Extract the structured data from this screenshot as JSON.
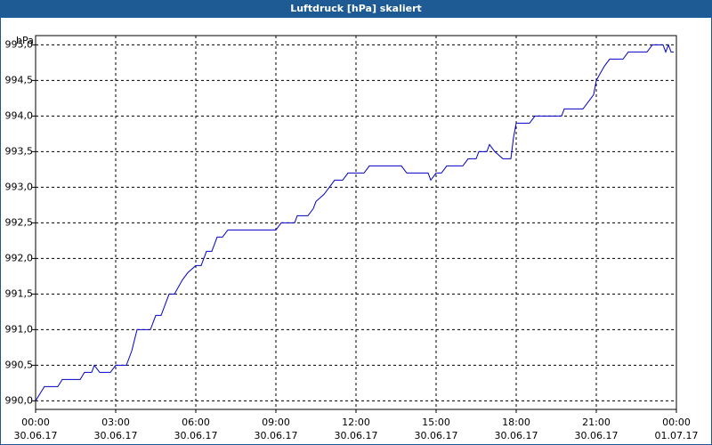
{
  "chart_data": {
    "type": "line",
    "title": "Luftdruck [hPa] skaliert",
    "y_label": "hPa",
    "xlim": [
      0,
      24
    ],
    "ylim": [
      989.88,
      995.13
    ],
    "xticks": [
      {
        "value": 0,
        "label": "00:00"
      },
      {
        "value": 3,
        "label": "03:00"
      },
      {
        "value": 6,
        "label": "06:00"
      },
      {
        "value": 9,
        "label": "09:00"
      },
      {
        "value": 12,
        "label": "12:00"
      },
      {
        "value": 15,
        "label": "15:00"
      },
      {
        "value": 18,
        "label": "18:00"
      },
      {
        "value": 21,
        "label": "21:00"
      },
      {
        "value": 24,
        "label": "00:00"
      }
    ],
    "xtick_dates": [
      "30.06.17",
      "30.06.17",
      "30.06.17",
      "30.06.17",
      "30.06.17",
      "30.06.17",
      "30.06.17",
      "30.06.17",
      "01.07.17"
    ],
    "yticks": [
      {
        "value": 990,
        "label": "990,0"
      },
      {
        "value": 990.5,
        "label": "990,5"
      },
      {
        "value": 991,
        "label": "991,0"
      },
      {
        "value": 991.5,
        "label": "991,5"
      },
      {
        "value": 992,
        "label": "992,0"
      },
      {
        "value": 992.5,
        "label": "992,5"
      },
      {
        "value": 993,
        "label": "993,0"
      },
      {
        "value": 993.5,
        "label": "993,5"
      },
      {
        "value": 994,
        "label": "994,0"
      },
      {
        "value": 994.5,
        "label": "994,5"
      },
      {
        "value": 995,
        "label": "995,0"
      }
    ],
    "grid": true,
    "series": [
      {
        "color": "#0000c8",
        "x": [
          0,
          0.33,
          0.83,
          1.0,
          1.67,
          1.83,
          2.1,
          2.2,
          2.4,
          2.8,
          3.0,
          3.4,
          3.6,
          3.8,
          4.0,
          4.3,
          4.5,
          4.7,
          5.0,
          5.2,
          5.5,
          5.7,
          6.0,
          6.2,
          6.4,
          6.6,
          6.8,
          7.0,
          7.2,
          9.0,
          9.2,
          9.7,
          9.8,
          10.2,
          10.4,
          10.5,
          10.8,
          11.0,
          11.2,
          11.5,
          11.7,
          12.3,
          12.5,
          13.7,
          13.9,
          14.7,
          14.8,
          15.0,
          15.2,
          15.4,
          16.0,
          16.2,
          16.5,
          16.6,
          16.9,
          17.0,
          17.2,
          17.5,
          17.8,
          17.9,
          18.0,
          18.5,
          18.7,
          19.7,
          19.8,
          20.5,
          20.7,
          20.9,
          21.0,
          21.3,
          21.5,
          22.0,
          22.2,
          22.9,
          23.1,
          23.5,
          23.6,
          23.7,
          23.8,
          23.9
        ],
        "values": [
          990.0,
          990.2,
          990.2,
          990.3,
          990.3,
          990.4,
          990.4,
          990.5,
          990.4,
          990.4,
          990.5,
          990.5,
          990.7,
          991.0,
          991.0,
          991.0,
          991.2,
          991.2,
          991.5,
          991.5,
          991.7,
          991.8,
          991.9,
          991.9,
          992.1,
          992.1,
          992.3,
          992.3,
          992.4,
          992.4,
          992.5,
          992.5,
          992.6,
          992.6,
          992.7,
          992.8,
          992.9,
          993.0,
          993.1,
          993.1,
          993.2,
          993.2,
          993.3,
          993.3,
          993.2,
          993.2,
          993.1,
          993.2,
          993.2,
          993.3,
          993.3,
          993.4,
          993.4,
          993.5,
          993.5,
          993.6,
          993.5,
          993.4,
          993.4,
          993.7,
          993.9,
          993.9,
          994.0,
          994.0,
          994.1,
          994.1,
          994.2,
          994.3,
          994.5,
          994.7,
          994.8,
          994.8,
          994.9,
          994.9,
          995.0,
          995.0,
          994.9,
          995.0,
          994.9,
          994.9
        ]
      }
    ]
  }
}
